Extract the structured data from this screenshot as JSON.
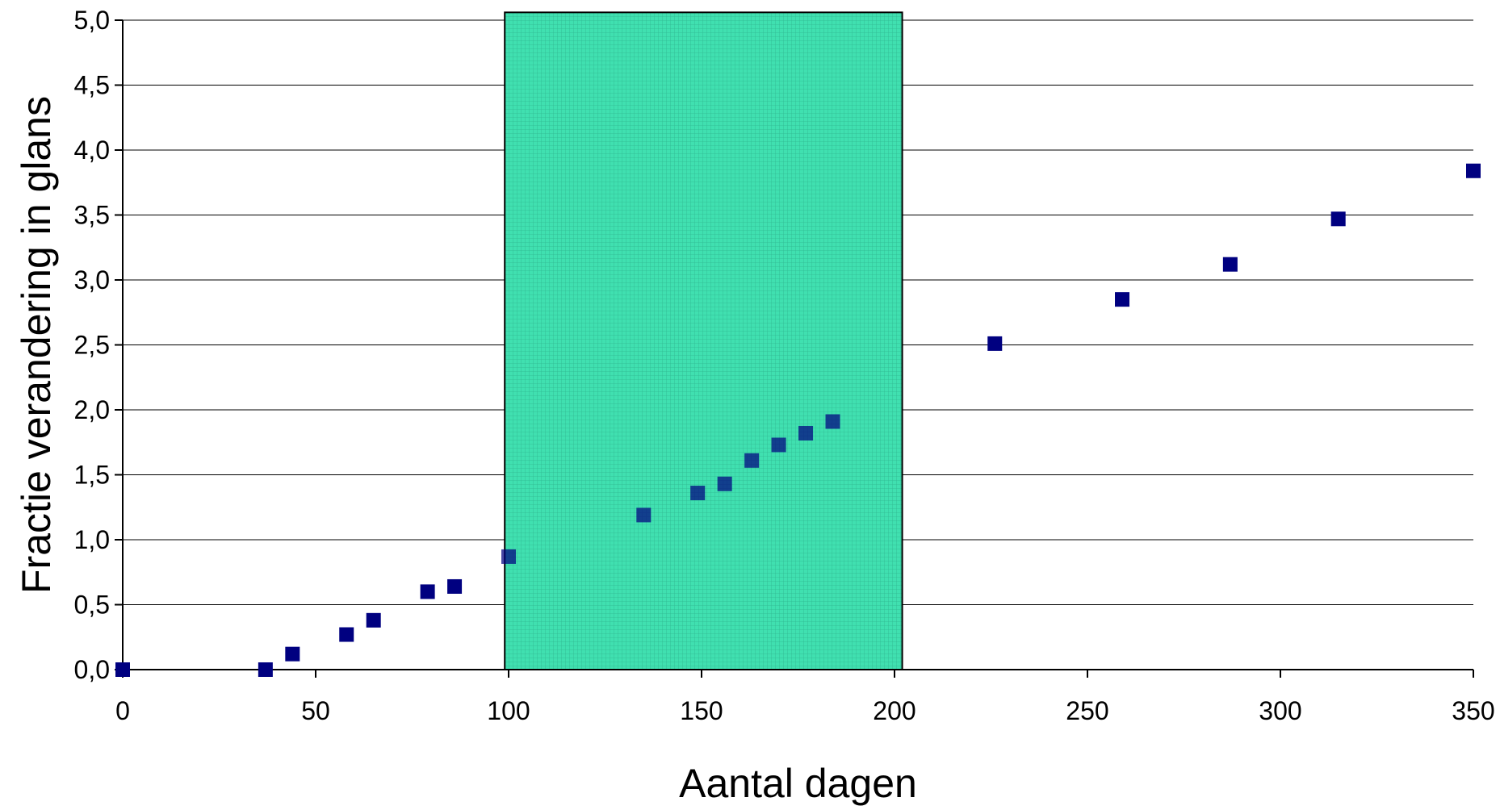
{
  "chart_data": {
    "type": "scatter",
    "xlabel": "Aantal dagen",
    "ylabel": "Fractie verandering in glans",
    "xlim": [
      0,
      350
    ],
    "ylim": [
      0,
      5
    ],
    "xticks": [
      0,
      50,
      100,
      150,
      200,
      250,
      300,
      350
    ],
    "xtick_labels": [
      "0",
      "50",
      "100",
      "150",
      "200",
      "250",
      "300",
      "350"
    ],
    "yticks": [
      0,
      0.5,
      1,
      1.5,
      2,
      2.5,
      3,
      3.5,
      4,
      4.5,
      5
    ],
    "ytick_labels": [
      "0,0",
      "0,5",
      "1,0",
      "1,5",
      "2,0",
      "2,5",
      "3,0",
      "3,5",
      "4,0",
      "4,5",
      "5,0"
    ],
    "grid": "horizontal",
    "legend": "none",
    "highlight_region": {
      "x": [
        99,
        202
      ],
      "y": [
        0,
        5.06
      ],
      "color": "#40e0b0"
    },
    "marker_color": "#000080",
    "series": [
      {
        "x": [
          0,
          37,
          44,
          58,
          65,
          79,
          86,
          100,
          135,
          149,
          156,
          163,
          170,
          177,
          184,
          226,
          259,
          287,
          315,
          350
        ],
        "y": [
          0.0,
          0.0,
          0.12,
          0.27,
          0.38,
          0.6,
          0.64,
          0.87,
          1.19,
          1.36,
          1.43,
          1.61,
          1.73,
          1.82,
          1.91,
          2.51,
          2.85,
          3.12,
          3.47,
          3.84
        ]
      }
    ]
  }
}
